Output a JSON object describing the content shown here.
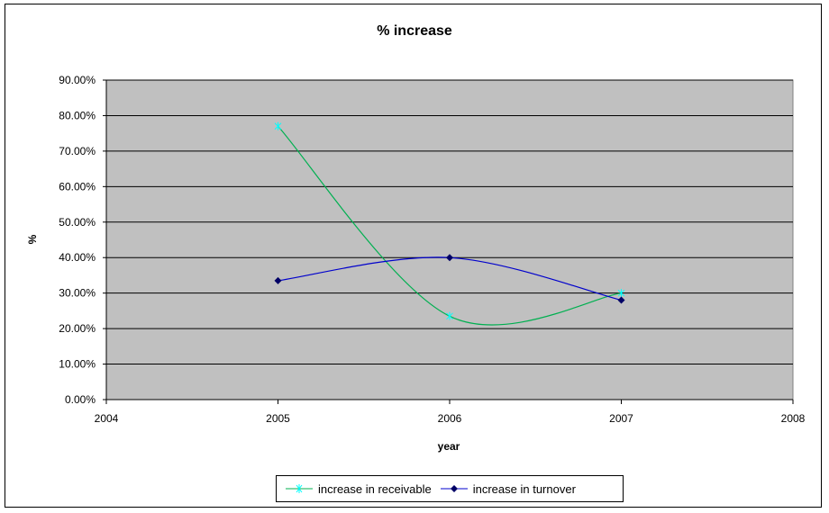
{
  "chart_data": {
    "type": "line",
    "title": "% increase",
    "xlabel": "year",
    "ylabel": "%",
    "xlim": [
      2004,
      2008
    ],
    "ylim": [
      0,
      0.9
    ],
    "x_ticks": [
      "2004",
      "2005",
      "2006",
      "2007",
      "2008"
    ],
    "y_ticks": [
      "0.00%",
      "10.00%",
      "20.00%",
      "30.00%",
      "40.00%",
      "50.00%",
      "60.00%",
      "70.00%",
      "80.00%",
      "90.00%"
    ],
    "grid": true,
    "legend_position": "bottom",
    "plot_background": "#c0c0c0",
    "series": [
      {
        "name": "increase in receivable",
        "color": "#00b050",
        "marker_color": "#00ffff",
        "marker": "star",
        "smooth": true,
        "x": [
          2005,
          2006,
          2007
        ],
        "y": [
          0.77,
          0.235,
          0.3
        ]
      },
      {
        "name": "increase in turnover",
        "color": "#0000cc",
        "marker_color": "#000066",
        "marker": "diamond",
        "smooth": true,
        "x": [
          2005,
          2006,
          2007
        ],
        "y": [
          0.335,
          0.4,
          0.28
        ]
      }
    ]
  }
}
